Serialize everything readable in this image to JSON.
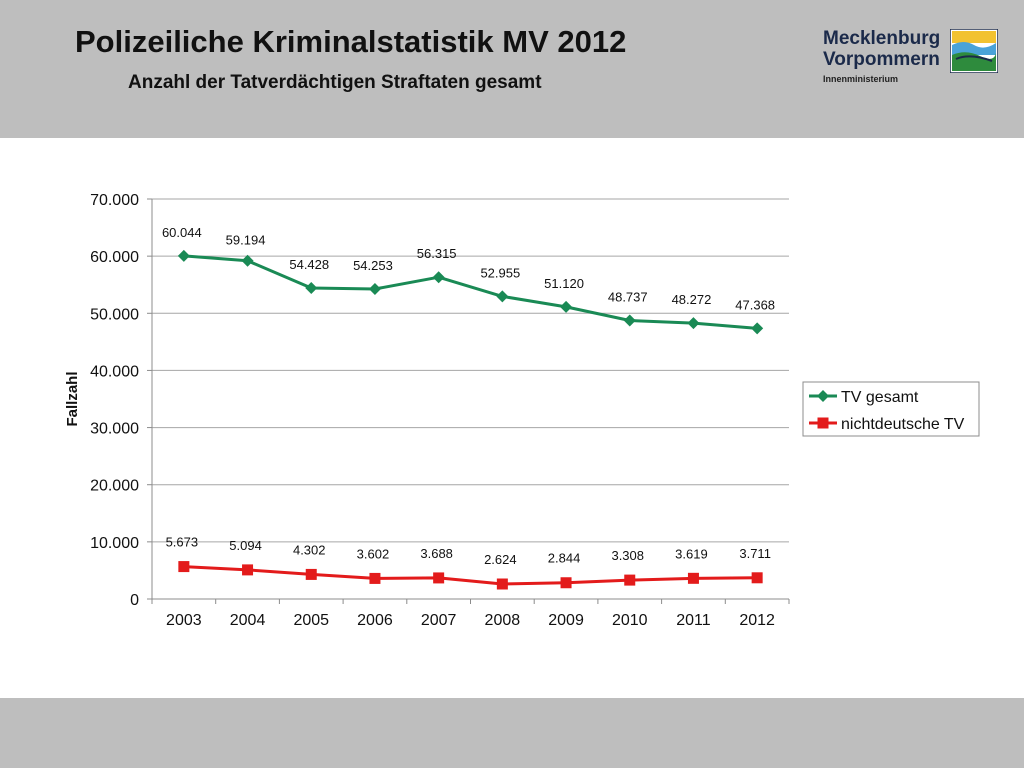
{
  "header": {
    "title": "Polizeiliche Kriminalstatistik MV 2012",
    "subtitle": "Anzahl der Tatverdächtigen Straftaten gesamt",
    "logo_line1": "Mecklenburg",
    "logo_line2": "Vorpommern",
    "logo_line3": "Innenministerium"
  },
  "colors": {
    "band": "#bebebe",
    "series1": "#1a8a55",
    "series2": "#e31b1b"
  },
  "chart_data": {
    "type": "line",
    "title": "",
    "xlabel": "",
    "ylabel": "Fallzahl",
    "ylim": [
      0,
      70000
    ],
    "yticks": [
      0,
      10000,
      20000,
      30000,
      40000,
      50000,
      60000,
      70000
    ],
    "ytick_labels": [
      "0",
      "10.000",
      "20.000",
      "30.000",
      "40.000",
      "50.000",
      "60.000",
      "70.000"
    ],
    "grid": true,
    "legend_position": "right",
    "categories": [
      "2003",
      "2004",
      "2005",
      "2006",
      "2007",
      "2008",
      "2009",
      "2010",
      "2011",
      "2012"
    ],
    "series": [
      {
        "name": "TV gesamt",
        "marker": "diamond",
        "values": [
          60044,
          59194,
          54428,
          54253,
          56315,
          52955,
          51120,
          48737,
          48272,
          47368
        ],
        "labels": [
          "60.044",
          "59.194",
          "54.428",
          "54.253",
          "56.315",
          "52.955",
          "51.120",
          "48.737",
          "48.272",
          "47.368"
        ]
      },
      {
        "name": "nichtdeutsche TV",
        "marker": "square",
        "values": [
          5673,
          5094,
          4302,
          3602,
          3688,
          2624,
          2844,
          3308,
          3619,
          3711
        ],
        "labels": [
          "5.673",
          "5.094",
          "4.302",
          "3.602",
          "3.688",
          "2.624",
          "2.844",
          "3.308",
          "3.619",
          "3.711"
        ]
      }
    ]
  }
}
